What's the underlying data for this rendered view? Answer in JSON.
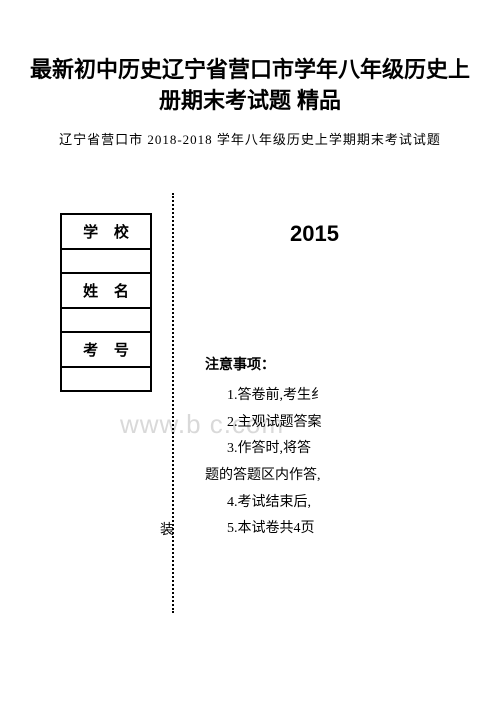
{
  "title_line1": "最新初中历史辽宁省营口市学年八年级历史上",
  "title_line2": "册期末考试题 精品",
  "subtitle": "辽宁省营口市 2018-2018 学年八年级历史上学期期末考试试题",
  "table": {
    "school": "学 校",
    "name": "姓 名",
    "exam_no": "考 号"
  },
  "year": "2015",
  "notice": {
    "heading": "注意事项：",
    "items": [
      "1.答卷前,考生纟",
      "2.主观试题答案",
      "3.作答时,将答",
      "4.考试结束后,",
      "5.本试卷共4页"
    ],
    "wrap_line": "题的答题区内作答,"
  },
  "watermark": "www.b        c.com",
  "zhuang": "装",
  "colors": {
    "text": "#000000",
    "bg": "#ffffff",
    "watermark": "#d9d9d9",
    "border": "#000000"
  }
}
